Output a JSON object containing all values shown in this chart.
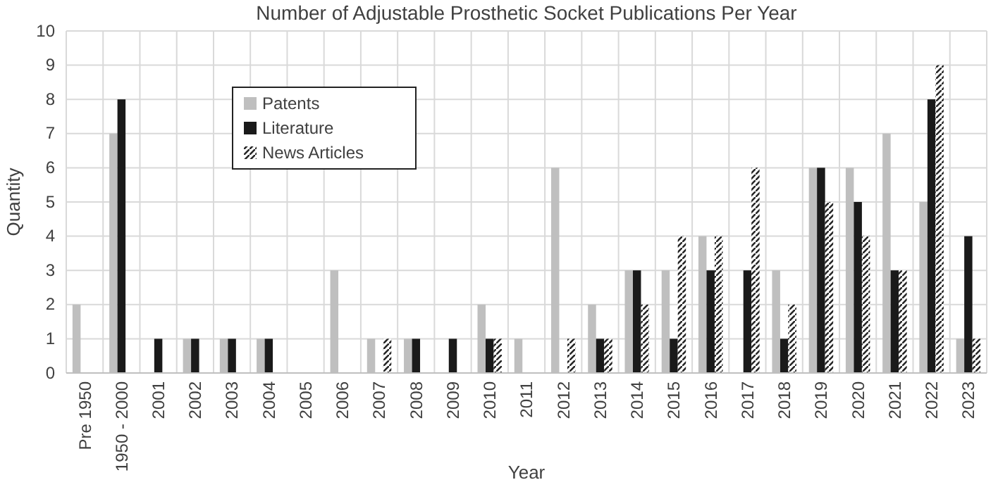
{
  "chart_data": {
    "type": "bar",
    "title": "Number of Adjustable Prosthetic Socket Publications Per Year",
    "xlabel": "Year",
    "ylabel": "Quantity",
    "categories": [
      "Pre 1950",
      "1950 - 2000",
      "2001",
      "2002",
      "2003",
      "2004",
      "2005",
      "2006",
      "2007",
      "2008",
      "2009",
      "2010",
      "2011",
      "2012",
      "2013",
      "2014",
      "2015",
      "2016",
      "2017",
      "2018",
      "2019",
      "2020",
      "2021",
      "2022",
      "2023"
    ],
    "series": [
      {
        "name": "Patents",
        "color": "#bfbfbf",
        "values": [
          2,
          7,
          0,
          1,
          1,
          1,
          0,
          3,
          1,
          1,
          0,
          2,
          1,
          6,
          2,
          3,
          3,
          4,
          0,
          3,
          6,
          6,
          7,
          5,
          1
        ]
      },
      {
        "name": "Literature",
        "color": "#1a1a1a",
        "values": [
          0,
          8,
          1,
          1,
          1,
          1,
          0,
          0,
          0,
          1,
          1,
          1,
          0,
          0,
          1,
          3,
          1,
          3,
          3,
          1,
          6,
          5,
          3,
          8,
          4
        ]
      },
      {
        "name": "News Articles",
        "color": "#262626",
        "values": [
          0,
          0,
          0,
          0,
          0,
          0,
          0,
          0,
          1,
          0,
          0,
          1,
          0,
          1,
          1,
          2,
          4,
          4,
          6,
          2,
          5,
          4,
          3,
          9,
          1
        ]
      }
    ],
    "ylim": [
      0,
      10
    ],
    "yticks": [
      0,
      1,
      2,
      3,
      4,
      5,
      6,
      7,
      8,
      9,
      10
    ],
    "grid": true,
    "legend": "top left"
  }
}
